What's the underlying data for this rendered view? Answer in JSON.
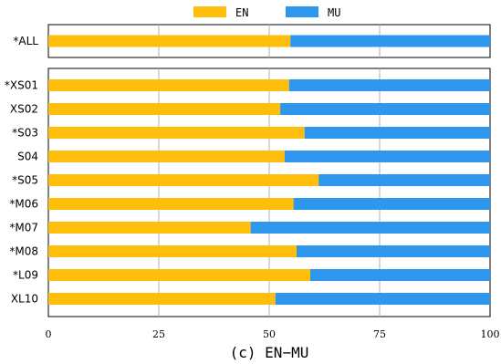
{
  "chart_data": {
    "type": "bar",
    "stacked": true,
    "orientation": "horizontal",
    "caption": "(c) EN−MU",
    "xlim": [
      0,
      100
    ],
    "x_ticks": [
      "0",
      "25",
      "50",
      "75",
      "100"
    ],
    "grid": "vertical",
    "legend_position": "top-center",
    "series": [
      {
        "name": "EN",
        "color": "#FFBE0B"
      },
      {
        "name": "MU",
        "color": "#2E96EC"
      }
    ],
    "summary": {
      "category": "*ALL",
      "en": 54.8
    },
    "categories": [
      "*XS01",
      "XS02",
      "*S03",
      "S04",
      "*S05",
      "*M06",
      "*M07",
      "*M08",
      "*L09",
      "XL10"
    ],
    "en_values": [
      54.5,
      52.5,
      58.0,
      53.5,
      61.2,
      55.5,
      45.8,
      56.2,
      59.3,
      51.4
    ]
  }
}
